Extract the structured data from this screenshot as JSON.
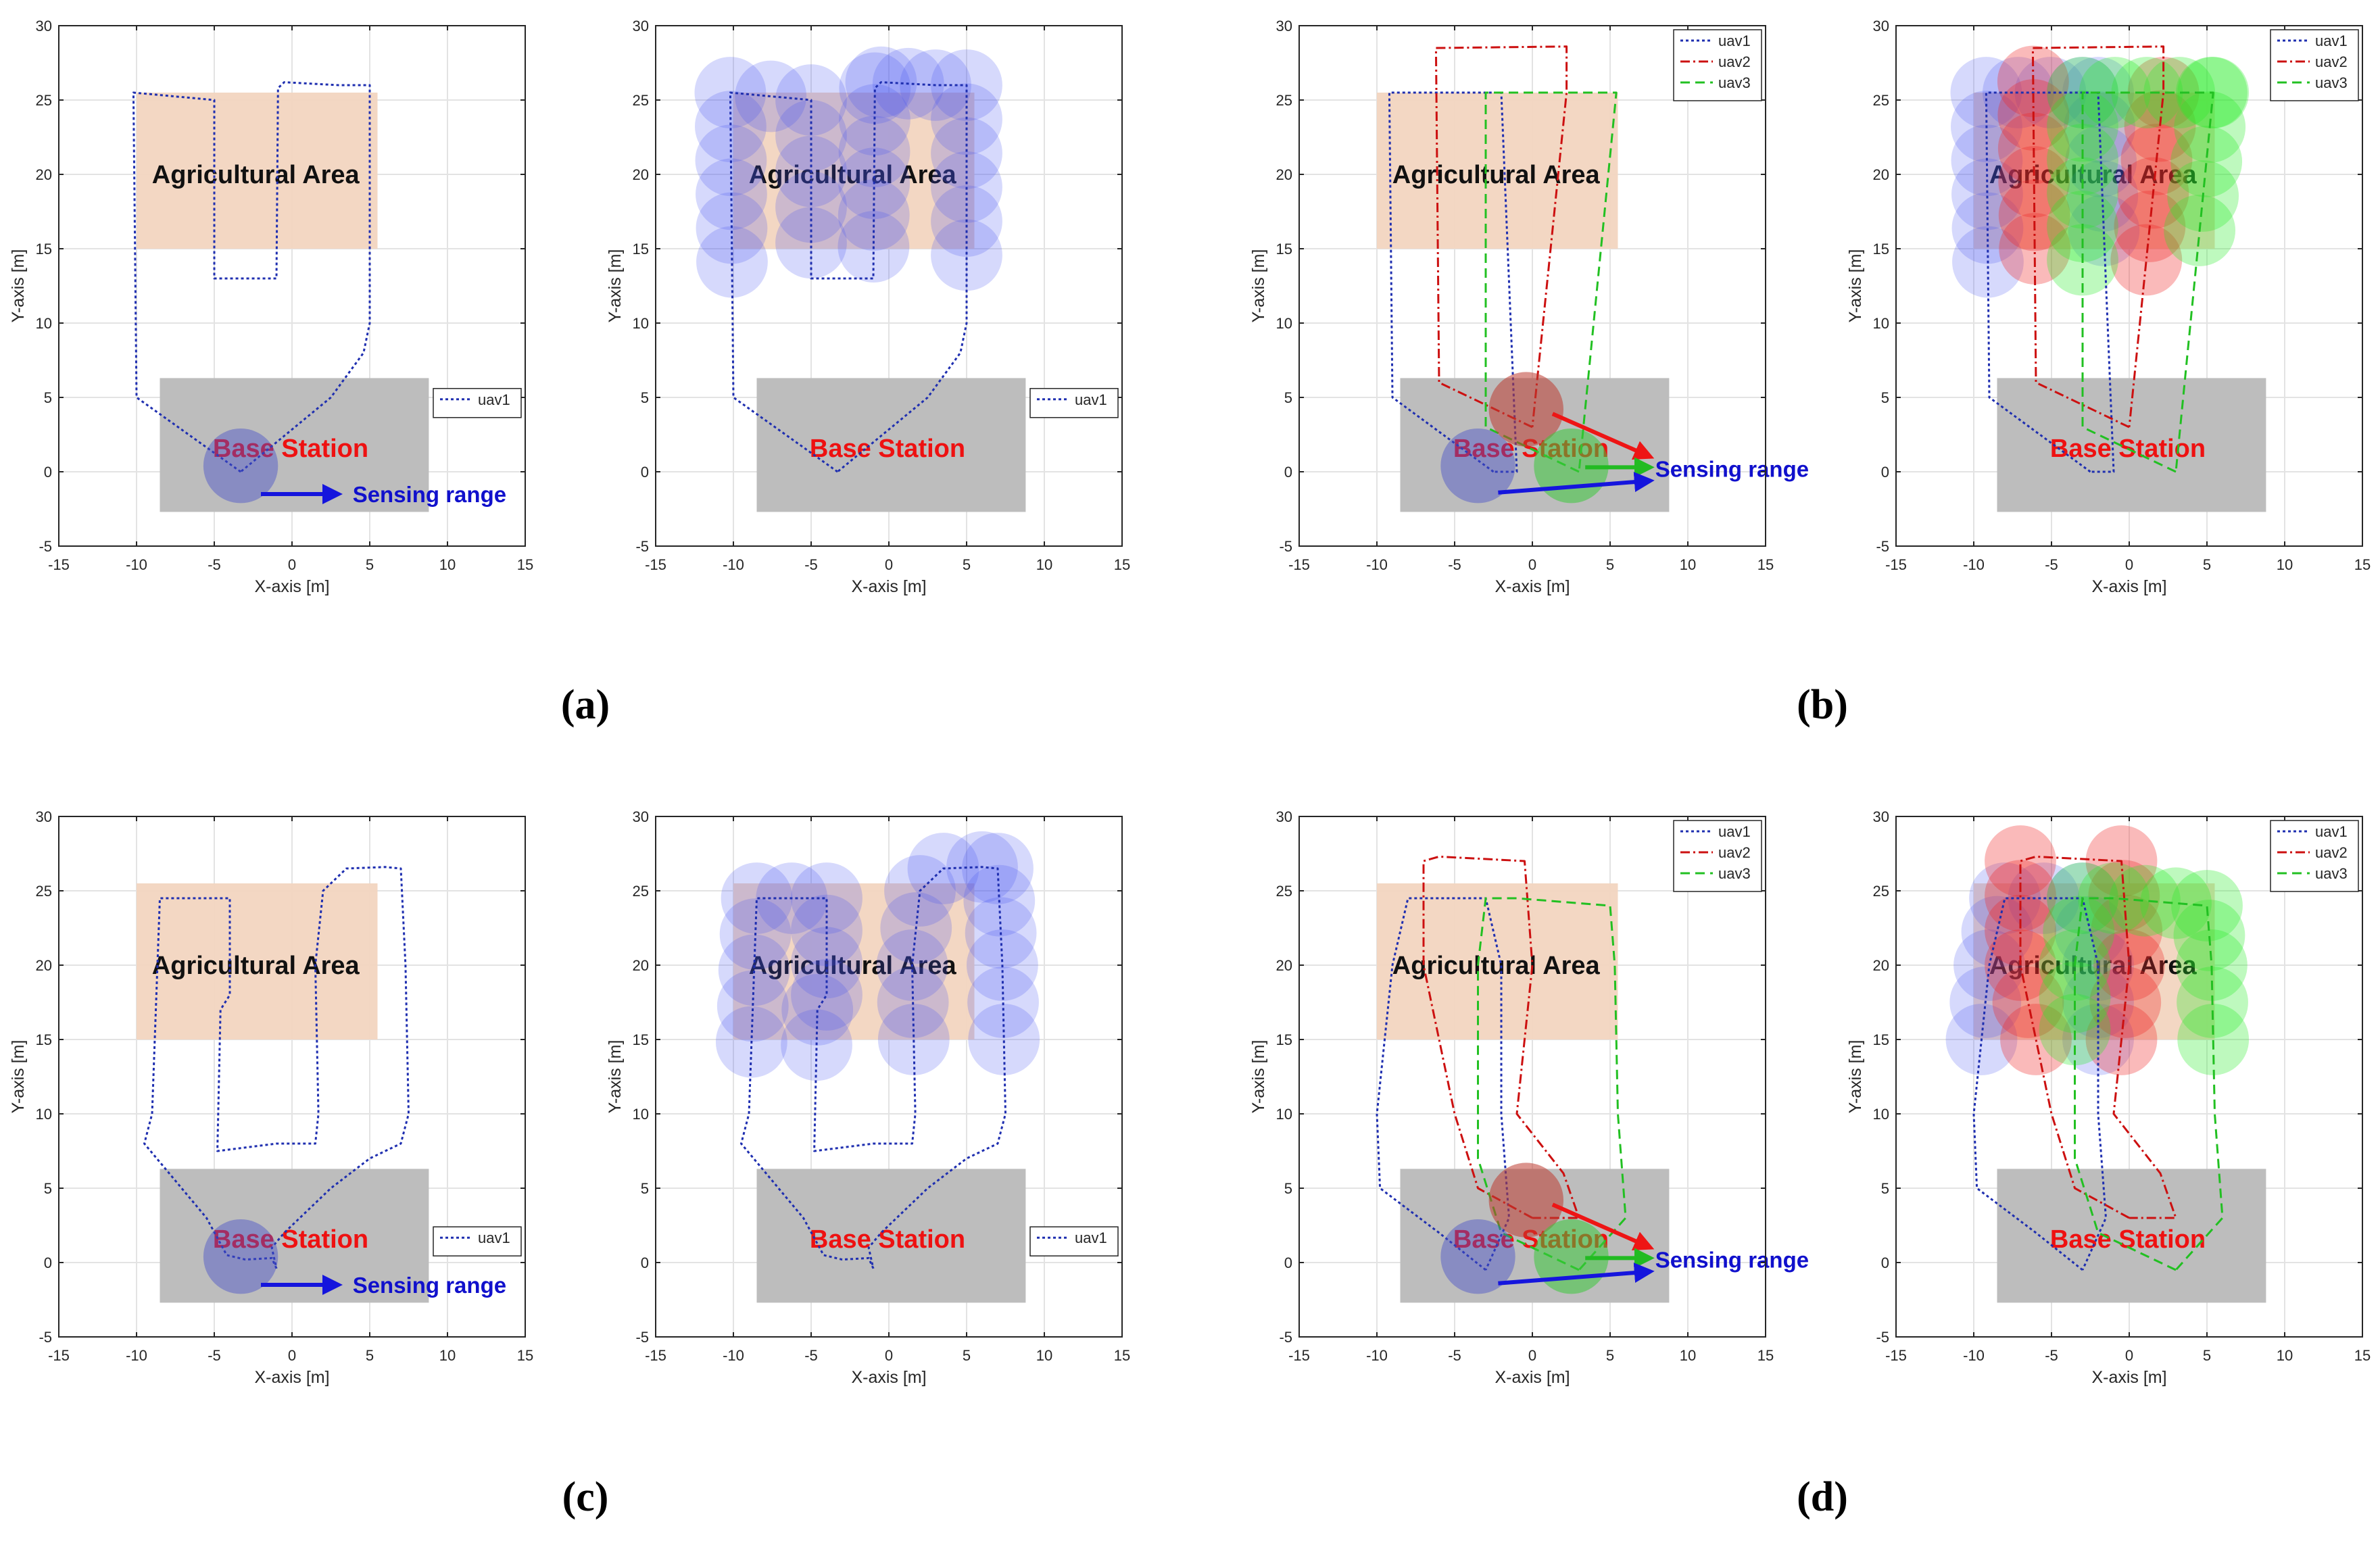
{
  "panel_labels": [
    "(a)",
    "(b)",
    "(c)",
    "(d)"
  ],
  "common": {
    "xlabel": "X-axis [m]",
    "ylabel": "Y-axis [m]",
    "xlim": [
      -15,
      15
    ],
    "ylim": [
      -5,
      30
    ],
    "xticks": [
      -15,
      -10,
      -5,
      0,
      5,
      10,
      15
    ],
    "yticks": [
      -5,
      0,
      5,
      10,
      15,
      20,
      25,
      30
    ],
    "grid": true,
    "agricultural_area_label": "Agricultural Area",
    "base_station_label": "Base Station",
    "sensing_range_label": "Sensing range",
    "colors": {
      "uav1": "#1f2fb0",
      "uav2": "#cc1010",
      "uav3": "#22c022",
      "base": "#bdbdbd",
      "agri": "#f2d5c0",
      "red_text": "#ee1111",
      "blue_text": "#1010cc"
    }
  },
  "chart_data": [
    {
      "type": "line",
      "panel": "a",
      "title": "",
      "legend": [
        "uav1"
      ],
      "legend_position": "middle-right",
      "agri_area": [
        -10,
        15,
        5.5,
        25.5
      ],
      "base_area": [
        -8.5,
        -2.7,
        8.8,
        6.3
      ],
      "annotations": [
        "Agricultural Area",
        "Base Station",
        "Sensing range"
      ],
      "show_sensing_circles": false,
      "series": [
        {
          "name": "uav1",
          "x": [
            -3.3,
            -10,
            -10.2,
            -5,
            -5,
            -4.6,
            -1,
            -0.9,
            -0.5,
            3,
            5,
            5,
            4.6,
            2.5,
            -3.3
          ],
          "y": [
            0,
            5,
            25.5,
            25,
            13,
            13,
            13,
            25.8,
            26.2,
            26,
            26,
            10,
            8,
            5,
            0
          ]
        }
      ]
    },
    {
      "type": "line",
      "panel": "a",
      "title": "",
      "legend": [
        "uav1"
      ],
      "legend_position": "middle-right",
      "agri_area": [
        -10,
        15,
        5.5,
        25.5
      ],
      "base_area": [
        -8.5,
        -2.7,
        8.8,
        6.3
      ],
      "annotations": [
        "Agricultural Area",
        "Base Station"
      ],
      "show_sensing_circles": true,
      "series": [
        {
          "name": "uav1",
          "x": [
            -3.3,
            -10,
            -10.2,
            -5,
            -5,
            -4.6,
            -1,
            -0.9,
            -0.5,
            3,
            5,
            5,
            4.6,
            2.5,
            -3.3
          ],
          "y": [
            0,
            5,
            25.5,
            25,
            13,
            13,
            13,
            25.8,
            26.2,
            26,
            26,
            10,
            8,
            5,
            0
          ]
        }
      ]
    },
    {
      "type": "line",
      "panel": "b",
      "title": "",
      "legend": [
        "uav1",
        "uav2",
        "uav3"
      ],
      "legend_position": "top-right",
      "agri_area": [
        -10,
        15,
        5.5,
        25.5
      ],
      "base_area": [
        -8.5,
        -2.7,
        8.8,
        6.3
      ],
      "annotations": [
        "Agricultural Area",
        "Base Station",
        "Sensing range"
      ],
      "show_sensing_circles": false,
      "series": [
        {
          "name": "uav1",
          "x": [
            -2.5,
            -9,
            -9.2,
            -3,
            -2,
            -1,
            -2.5
          ],
          "y": [
            0,
            5,
            25.5,
            25.5,
            25.5,
            0,
            0
          ]
        },
        {
          "name": "uav2",
          "x": [
            0,
            -6,
            -6.2,
            2.2,
            2.2,
            0
          ],
          "y": [
            3,
            6,
            28.5,
            28.6,
            25.5,
            3
          ]
        },
        {
          "name": "uav3",
          "x": [
            3,
            -3,
            -3,
            5.3,
            5.4,
            3
          ],
          "y": [
            0,
            3,
            25.5,
            25.5,
            25.5,
            0
          ]
        }
      ]
    },
    {
      "type": "line",
      "panel": "b",
      "title": "",
      "legend": [
        "uav1",
        "uav2",
        "uav3"
      ],
      "legend_position": "top-right",
      "agri_area": [
        -10,
        15,
        5.5,
        25.5
      ],
      "base_area": [
        -8.5,
        -2.7,
        8.8,
        6.3
      ],
      "annotations": [
        "Agricultural Area",
        "Base Station"
      ],
      "show_sensing_circles": true,
      "series": [
        {
          "name": "uav1",
          "x": [
            -2.5,
            -9,
            -9.2,
            -3,
            -2,
            -1,
            -2.5
          ],
          "y": [
            0,
            5,
            25.5,
            25.5,
            25.5,
            0,
            0
          ]
        },
        {
          "name": "uav2",
          "x": [
            0,
            -6,
            -6.2,
            2.2,
            2.2,
            0
          ],
          "y": [
            3,
            6,
            28.5,
            28.6,
            25.5,
            3
          ]
        },
        {
          "name": "uav3",
          "x": [
            3,
            -3,
            -3,
            5.3,
            5.4,
            3
          ],
          "y": [
            0,
            3,
            25.5,
            25.5,
            25.5,
            0
          ]
        }
      ]
    },
    {
      "type": "line",
      "panel": "c",
      "title": "",
      "legend": [
        "uav1"
      ],
      "legend_position": "lower-right",
      "agri_area": [
        -10,
        15,
        5.5,
        25.5
      ],
      "base_area": [
        -8.5,
        -2.7,
        8.8,
        6.3
      ],
      "annotations": [
        "Agricultural Area",
        "Base Station",
        "Sensing range"
      ],
      "show_sensing_circles": false,
      "series": [
        {
          "name": "uav1",
          "x": [
            -1,
            -1.3,
            -3,
            -4.2,
            -5.5,
            -9.5,
            -9,
            -8.5,
            -4,
            -4,
            -4.6,
            -4.8,
            -1,
            1.5,
            1.7,
            1.5,
            2,
            3.5,
            6,
            7,
            7.3,
            7.5,
            7,
            5,
            2.5,
            -0.5,
            -1.3,
            -1
          ],
          "y": [
            -0.4,
            0.3,
            0.2,
            0.5,
            3,
            8,
            10,
            24.5,
            24.5,
            18,
            17,
            7.5,
            8,
            8,
            10,
            20,
            25,
            26.5,
            26.6,
            26.5,
            20,
            10,
            8,
            7,
            5,
            2,
            1,
            -0.4
          ]
        }
      ]
    },
    {
      "type": "line",
      "panel": "c",
      "title": "",
      "legend": [
        "uav1"
      ],
      "legend_position": "lower-right",
      "agri_area": [
        -10,
        15,
        5.5,
        25.5
      ],
      "base_area": [
        -8.5,
        -2.7,
        8.8,
        6.3
      ],
      "annotations": [
        "Agricultural Area",
        "Base Station"
      ],
      "show_sensing_circles": true,
      "series": [
        {
          "name": "uav1",
          "x": [
            -1,
            -1.3,
            -3,
            -4.2,
            -5.5,
            -9.5,
            -9,
            -8.5,
            -4,
            -4,
            -4.6,
            -4.8,
            -1,
            1.5,
            1.7,
            1.5,
            2,
            3.5,
            6,
            7,
            7.3,
            7.5,
            7,
            5,
            2.5,
            -0.5,
            -1.3,
            -1
          ],
          "y": [
            -0.4,
            0.3,
            0.2,
            0.5,
            3,
            8,
            10,
            24.5,
            24.5,
            18,
            17,
            7.5,
            8,
            8,
            10,
            20,
            25,
            26.5,
            26.6,
            26.5,
            20,
            10,
            8,
            7,
            5,
            2,
            1,
            -0.4
          ]
        }
      ]
    },
    {
      "type": "line",
      "panel": "d",
      "title": "",
      "legend": [
        "uav1",
        "uav2",
        "uav3"
      ],
      "legend_position": "top-right",
      "agri_area": [
        -10,
        15,
        5.5,
        25.5
      ],
      "base_area": [
        -8.5,
        -2.7,
        8.8,
        6.3
      ],
      "annotations": [
        "Agricultural Area",
        "Base Station",
        "Sensing range"
      ],
      "show_sensing_circles": false,
      "series": [
        {
          "name": "uav1",
          "x": [
            -3,
            -6,
            -9.8,
            -10,
            -9,
            -8,
            -3,
            -2,
            -2,
            -1.5,
            -3
          ],
          "y": [
            -0.5,
            2,
            5,
            10,
            20,
            24.5,
            24.5,
            20,
            10,
            3,
            -0.5
          ]
        },
        {
          "name": "uav2",
          "x": [
            0,
            -3.5,
            -5,
            -7,
            -7,
            -6,
            -0.5,
            0,
            -1,
            2,
            3,
            2,
            0
          ],
          "y": [
            3,
            5,
            10,
            20,
            27,
            27.3,
            27,
            20,
            10,
            6,
            3,
            3,
            3
          ]
        },
        {
          "name": "uav3",
          "x": [
            3,
            -2,
            -3.5,
            -3.5,
            -3,
            -1,
            5,
            5.3,
            5.5,
            6,
            3
          ],
          "y": [
            -0.5,
            2,
            7,
            20,
            24.5,
            24.5,
            24,
            20,
            10,
            3,
            -0.5
          ]
        }
      ]
    },
    {
      "type": "line",
      "panel": "d",
      "title": "",
      "legend": [
        "uav1",
        "uav2",
        "uav3"
      ],
      "legend_position": "top-right",
      "agri_area": [
        -10,
        15,
        5.5,
        25.5
      ],
      "base_area": [
        -8.5,
        -2.7,
        8.8,
        6.3
      ],
      "annotations": [
        "Agricultural Area",
        "Base Station"
      ],
      "show_sensing_circles": true,
      "series": [
        {
          "name": "uav1",
          "x": [
            -3,
            -6,
            -9.8,
            -10,
            -9,
            -8,
            -3,
            -2,
            -2,
            -1.5,
            -3
          ],
          "y": [
            -0.5,
            2,
            5,
            10,
            20,
            24.5,
            24.5,
            20,
            10,
            3,
            -0.5
          ]
        },
        {
          "name": "uav2",
          "x": [
            0,
            -3.5,
            -5,
            -7,
            -7,
            -6,
            -0.5,
            0,
            -1,
            2,
            3,
            2,
            0
          ],
          "y": [
            3,
            5,
            10,
            20,
            27,
            27.3,
            27,
            20,
            10,
            6,
            3,
            3,
            3
          ]
        },
        {
          "name": "uav3",
          "x": [
            3,
            -2,
            -3.5,
            -3.5,
            -3,
            -1,
            5,
            5.3,
            5.5,
            6,
            3
          ],
          "y": [
            -0.5,
            2,
            7,
            20,
            24.5,
            24.5,
            24,
            20,
            10,
            3,
            -0.5
          ]
        }
      ]
    }
  ]
}
